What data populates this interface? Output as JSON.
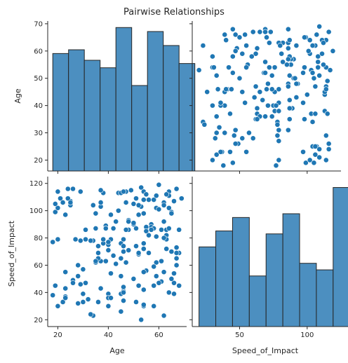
{
  "chart_data": {
    "type": "scatter",
    "title": "Pairwise Relationships",
    "variables": [
      "Age",
      "Speed_of_Impact"
    ],
    "colors": {
      "bar_fill": "#4c8fc0",
      "bar_edge": "#262626",
      "point": "#1f77b4",
      "axis": "#262626"
    },
    "grid": false,
    "ticks": {
      "Age": [
        20,
        40,
        60
      ],
      "Age_y": [
        20,
        30,
        40,
        50,
        60,
        70
      ],
      "Speed_of_Impact": [
        50,
        100
      ],
      "Speed_of_Impact_y": [
        20,
        40,
        60,
        80,
        100,
        120
      ]
    },
    "axis_range": {
      "Age": [
        16,
        71
      ],
      "Speed_of_Impact": [
        15,
        125
      ]
    },
    "histograms": {
      "Age": {
        "bins": [
          18,
          24.25,
          30.5,
          36.75,
          43,
          49.25,
          55.5,
          61.75,
          68
        ],
        "counts": [
          47,
          48.5,
          44.3,
          41.3,
          57.4,
          34.2,
          55.8,
          50.2,
          43
        ]
      },
      "Speed_of_Impact": {
        "bins": [
          20,
          32.4,
          44.8,
          57.2,
          69.6,
          82,
          94.4,
          106.8,
          119.2
        ],
        "counts": [
          68,
          81.6,
          93.1,
          43.2,
          79.1,
          96.3,
          54,
          48.4,
          118.7
        ]
      }
    },
    "points": {
      "Age": [
        37,
        28,
        40,
        66,
        35,
        46,
        54,
        62,
        19,
        45,
        61,
        55,
        18,
        32,
        23,
        44,
        37,
        62,
        67,
        23,
        51,
        52,
        42,
        34,
        22,
        24,
        62,
        25,
        60,
        41,
        46,
        52,
        65,
        48,
        31,
        63,
        69,
        34,
        50,
        57,
        35,
        54,
        41,
        37,
        28,
        49,
        52,
        56,
        59,
        66,
        58,
        62,
        25,
        68,
        48,
        47,
        50,
        29,
        66,
        45,
        55,
        18,
        31,
        43,
        46,
        59,
        40,
        53,
        46,
        39,
        51,
        33,
        47,
        64,
        46,
        54,
        30,
        59,
        63,
        30,
        35,
        20,
        68,
        67,
        40,
        52,
        64,
        41,
        45,
        21,
        52,
        33,
        67,
        54,
        63,
        37,
        26,
        59,
        57,
        19,
        45,
        26,
        50,
        38,
        61,
        36,
        64,
        43,
        57,
        65,
        54,
        39,
        58,
        26,
        53,
        48,
        60,
        55,
        61,
        38,
        46,
        45,
        52,
        54,
        23,
        58,
        62,
        39,
        36,
        58,
        58,
        60,
        56,
        46,
        38,
        20,
        24,
        68,
        28,
        54,
        53,
        44,
        50,
        40,
        29,
        23,
        20,
        65,
        64,
        56,
        29,
        23,
        34,
        41,
        31,
        54,
        39,
        63,
        25,
        45,
        59,
        51,
        48,
        51,
        47,
        64,
        63,
        66,
        62,
        40,
        19,
        27,
        30,
        46,
        54,
        37,
        55,
        67,
        67,
        37,
        47,
        22,
        36,
        35,
        65,
        20,
        57,
        40,
        42,
        36
      ],
      "Speed_of_Impact": [
        103,
        60,
        39,
        107,
        62,
        41,
        42,
        106,
        99,
        76,
        63,
        88,
        77,
        35,
        55,
        113,
        106,
        104,
        73,
        37,
        74,
        97,
        67,
        23,
        33,
        116,
        23,
        104,
        119,
        97,
        79,
        45,
        99,
        93,
        86,
        86,
        109,
        78,
        90,
        88,
        87,
        76,
        79,
        43,
        52,
        115,
        68,
        108,
        62,
        54,
        45,
        55,
        107,
        45,
        71,
        106,
        91,
        114,
        47,
        113,
        56,
        38,
        47,
        61,
        70,
        81,
        36,
        117,
        34,
        89,
        33,
        78,
        114,
        114,
        44,
        55,
        33,
        52,
        82,
        57,
        98,
        114,
        69,
        69,
        71,
        69,
        111,
        36,
        26,
        109,
        45,
        24,
        65,
        30,
        79,
        63,
        116,
        102,
        90,
        45,
        52,
        49,
        105,
        113,
        48,
        69,
        87,
        92,
        88,
        50,
        108,
        87,
        30,
        47,
        103,
        86,
        47,
        85,
        86,
        76,
        74,
        39,
        104,
        98,
        43,
        87,
        80,
        63,
        65,
        59,
        108,
        101,
        82,
        40,
        79,
        79,
        109,
        86,
        32,
        72,
        20,
        100,
        50,
        30,
        78,
        97,
        102,
        70,
        40,
        69,
        46,
        36,
        104,
        54,
        79,
        31,
        87,
        72,
        106,
        65,
        111,
        87,
        92,
        109,
        62,
        102,
        112,
        39,
        92,
        75,
        105,
        79,
        39,
        114,
        114,
        43,
        112,
        60,
        116,
        115,
        86,
        106,
        33,
        63,
        98,
        30,
        86,
        77,
        87,
        74
      ]
    },
    "axis_labels": {
      "Age": "Age",
      "Speed_of_Impact": "Speed_of_Impact"
    }
  }
}
